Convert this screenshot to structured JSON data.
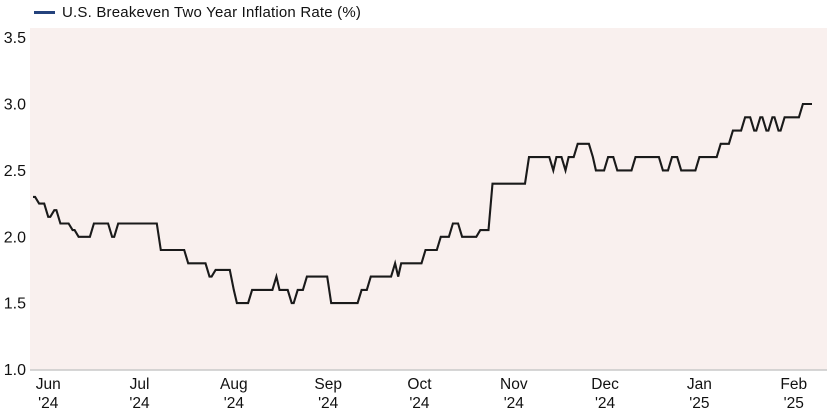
{
  "legend": {
    "label": "U.S. Breakeven Two Year Inflation Rate (%)"
  },
  "colors": {
    "line": "#1a1a1a",
    "legend_dash": "#24427c",
    "plot_background": "#f9f0ee",
    "axis_line": "#c9c9c9",
    "text": "#111111"
  },
  "chart_data": {
    "type": "line",
    "line_style": "step",
    "title": "U.S. Breakeven Two Year Inflation Rate (%)",
    "grid": false,
    "legend_position": "top-left",
    "ylabel": "",
    "xlabel": "",
    "ylim": [
      1.0,
      3.5
    ],
    "y_ticks": [
      {
        "label": "3.5",
        "value": 3.5
      },
      {
        "label": "3.0",
        "value": 3.0
      },
      {
        "label": "2.5",
        "value": 2.5
      },
      {
        "label": "2.0",
        "value": 2.0
      },
      {
        "label": "1.5",
        "value": 1.5
      },
      {
        "label": "1.0",
        "value": 1.0
      }
    ],
    "x_start": "2024-05-27",
    "x_end": "2025-02-07",
    "x_ticks": [
      {
        "month": "Jun",
        "year": "'24",
        "date": "2024-06-01"
      },
      {
        "month": "Jul",
        "year": "'24",
        "date": "2024-07-01"
      },
      {
        "month": "Aug",
        "year": "'24",
        "date": "2024-08-01"
      },
      {
        "month": "Sep",
        "year": "'24",
        "date": "2024-09-01"
      },
      {
        "month": "Oct",
        "year": "'24",
        "date": "2024-10-01"
      },
      {
        "month": "Nov",
        "year": "'24",
        "date": "2024-11-01"
      },
      {
        "month": "Dec",
        "year": "'24",
        "date": "2024-12-01"
      },
      {
        "month": "Jan",
        "year": "'25",
        "date": "2025-01-01"
      },
      {
        "month": "Feb",
        "year": "'25",
        "date": "2025-02-01"
      }
    ],
    "series": [
      {
        "name": "U.S. Breakeven Two Year Inflation Rate (%)",
        "points": [
          [
            "2024-05-27",
            2.3
          ],
          [
            "2024-05-29",
            2.25
          ],
          [
            "2024-06-01",
            2.15
          ],
          [
            "2024-06-03",
            2.2
          ],
          [
            "2024-06-05",
            2.1
          ],
          [
            "2024-06-09",
            2.05
          ],
          [
            "2024-06-11",
            2.0
          ],
          [
            "2024-06-16",
            2.1
          ],
          [
            "2024-06-22",
            2.0
          ],
          [
            "2024-06-24",
            2.1
          ],
          [
            "2024-07-08",
            1.9
          ],
          [
            "2024-07-17",
            1.8
          ],
          [
            "2024-07-24",
            1.7
          ],
          [
            "2024-07-26",
            1.75
          ],
          [
            "2024-08-01",
            1.6
          ],
          [
            "2024-08-02",
            1.5
          ],
          [
            "2024-08-07",
            1.6
          ],
          [
            "2024-08-15",
            1.7
          ],
          [
            "2024-08-16",
            1.6
          ],
          [
            "2024-08-20",
            1.5
          ],
          [
            "2024-08-22",
            1.6
          ],
          [
            "2024-08-25",
            1.7
          ],
          [
            "2024-09-02",
            1.5
          ],
          [
            "2024-09-12",
            1.6
          ],
          [
            "2024-09-15",
            1.7
          ],
          [
            "2024-09-23",
            1.8
          ],
          [
            "2024-09-24",
            1.7
          ],
          [
            "2024-09-25",
            1.8
          ],
          [
            "2024-10-03",
            1.9
          ],
          [
            "2024-10-08",
            2.0
          ],
          [
            "2024-10-12",
            2.1
          ],
          [
            "2024-10-15",
            2.0
          ],
          [
            "2024-10-21",
            2.05
          ],
          [
            "2024-10-25",
            2.4
          ],
          [
            "2024-11-06",
            2.6
          ],
          [
            "2024-11-14",
            2.5
          ],
          [
            "2024-11-15",
            2.6
          ],
          [
            "2024-11-18",
            2.5
          ],
          [
            "2024-11-19",
            2.6
          ],
          [
            "2024-11-22",
            2.7
          ],
          [
            "2024-11-27",
            2.6
          ],
          [
            "2024-11-28",
            2.5
          ],
          [
            "2024-12-02",
            2.6
          ],
          [
            "2024-12-05",
            2.5
          ],
          [
            "2024-12-11",
            2.6
          ],
          [
            "2024-12-20",
            2.5
          ],
          [
            "2024-12-23",
            2.6
          ],
          [
            "2024-12-26",
            2.5
          ],
          [
            "2025-01-01",
            2.6
          ],
          [
            "2025-01-08",
            2.7
          ],
          [
            "2025-01-12",
            2.8
          ],
          [
            "2025-01-16",
            2.9
          ],
          [
            "2025-01-19",
            2.8
          ],
          [
            "2025-01-21",
            2.9
          ],
          [
            "2025-01-23",
            2.8
          ],
          [
            "2025-01-25",
            2.9
          ],
          [
            "2025-01-27",
            2.8
          ],
          [
            "2025-01-29",
            2.9
          ],
          [
            "2025-02-04",
            3.0
          ],
          [
            "2025-02-07",
            3.0
          ]
        ]
      }
    ]
  }
}
